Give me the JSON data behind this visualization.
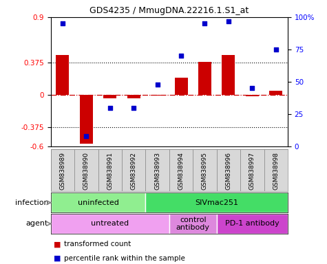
{
  "title": "GDS4235 / MmugDNA.22216.1.S1_at",
  "samples": [
    "GSM838989",
    "GSM838990",
    "GSM838991",
    "GSM838992",
    "GSM838993",
    "GSM838994",
    "GSM838995",
    "GSM838996",
    "GSM838997",
    "GSM838998"
  ],
  "transformed_count": [
    0.46,
    -0.57,
    -0.04,
    -0.04,
    -0.01,
    0.2,
    0.38,
    0.46,
    -0.02,
    0.05
  ],
  "percentile_rank": [
    95,
    8,
    30,
    30,
    48,
    70,
    95,
    97,
    45,
    75
  ],
  "ylim_left": [
    -0.6,
    0.9
  ],
  "ylim_right": [
    0,
    100
  ],
  "yticks_left": [
    -0.6,
    -0.375,
    0,
    0.375,
    0.9
  ],
  "yticks_right": [
    0,
    25,
    50,
    75,
    100
  ],
  "hlines": [
    0.375,
    -0.375
  ],
  "bar_color": "#cc0000",
  "dot_color": "#0000cc",
  "zero_line_color": "#cc0000",
  "infection_groups": [
    {
      "label": "uninfected",
      "start": 0,
      "end": 4,
      "color": "#90ee90"
    },
    {
      "label": "SIVmac251",
      "start": 4,
      "end": 10,
      "color": "#44dd66"
    }
  ],
  "agent_groups": [
    {
      "label": "untreated",
      "start": 0,
      "end": 5,
      "color": "#f0a0f0"
    },
    {
      "label": "control\nantibody",
      "start": 5,
      "end": 7,
      "color": "#dd88dd"
    },
    {
      "label": "PD-1 antibody",
      "start": 7,
      "end": 10,
      "color": "#cc44cc"
    }
  ],
  "infection_label": "infection",
  "agent_label": "agent",
  "legend_bar_label": "transformed count",
  "legend_dot_label": "percentile rank within the sample",
  "sample_box_color": "#d8d8d8",
  "sample_box_edge": "#888888"
}
